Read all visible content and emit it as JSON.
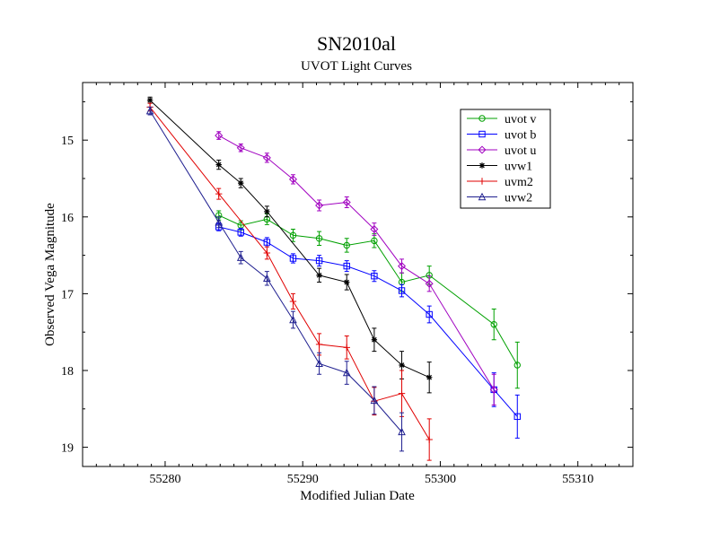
{
  "chart_data": {
    "type": "line",
    "title": "SN2010al",
    "subtitle": "UVOT Light Curves",
    "xlabel": "Modified Julian Date",
    "ylabel": "Observed Vega Magnitude",
    "xlim": [
      55274,
      55314
    ],
    "ylim": [
      19.25,
      14.25
    ],
    "y_inverted": true,
    "xticks": [
      55280,
      55290,
      55300,
      55310
    ],
    "yticks": [
      15,
      16,
      17,
      18,
      19
    ],
    "grid": false,
    "legend_position": "top-right",
    "series": [
      {
        "name": "uvot v",
        "color": "#00a000",
        "marker": "circle",
        "x": [
          55283.9,
          55285.5,
          55287.4,
          55289.3,
          55291.2,
          55293.2,
          55295.2,
          55297.2,
          55299.2,
          55303.9,
          55305.6
        ],
        "y": [
          15.98,
          16.11,
          16.03,
          16.24,
          16.28,
          16.37,
          16.31,
          16.85,
          16.76,
          17.4,
          17.93
        ],
        "err": [
          0.06,
          0.06,
          0.07,
          0.08,
          0.09,
          0.09,
          0.09,
          0.12,
          0.12,
          0.2,
          0.3
        ]
      },
      {
        "name": "uvot b",
        "color": "#0000ff",
        "marker": "square",
        "x": [
          55283.9,
          55285.5,
          55287.4,
          55289.3,
          55291.2,
          55293.2,
          55295.2,
          55297.2,
          55299.2,
          55303.9,
          55305.6
        ],
        "y": [
          16.13,
          16.2,
          16.33,
          16.54,
          16.57,
          16.64,
          16.77,
          16.96,
          17.27,
          18.25,
          18.6
        ],
        "err": [
          0.05,
          0.05,
          0.06,
          0.06,
          0.07,
          0.07,
          0.07,
          0.08,
          0.11,
          0.22,
          0.28
        ]
      },
      {
        "name": "uvot u",
        "color": "#a000c0",
        "marker": "diamond",
        "x": [
          55283.9,
          55285.5,
          55287.4,
          55289.3,
          55291.2,
          55293.2,
          55295.2,
          55297.2,
          55299.2,
          55303.9
        ],
        "y": [
          14.94,
          15.1,
          15.23,
          15.51,
          15.85,
          15.81,
          16.16,
          16.64,
          16.87,
          18.25
        ],
        "err": [
          0.05,
          0.05,
          0.06,
          0.06,
          0.07,
          0.07,
          0.08,
          0.09,
          0.1,
          0.2
        ]
      },
      {
        "name": "uvw1",
        "color": "#000000",
        "marker": "star",
        "x": [
          55278.9,
          55283.9,
          55285.5,
          55287.4,
          55291.2,
          55293.2,
          55295.2,
          55297.2,
          55299.2
        ],
        "y": [
          14.48,
          15.32,
          15.56,
          15.93,
          16.76,
          16.85,
          17.6,
          17.93,
          18.09
        ],
        "err": [
          0.04,
          0.06,
          0.06,
          0.07,
          0.09,
          0.1,
          0.15,
          0.18,
          0.2
        ]
      },
      {
        "name": "uvm2",
        "color": "#e00000",
        "marker": "plus",
        "x": [
          55278.9,
          55283.9,
          55287.4,
          55289.3,
          55291.2,
          55293.2,
          55295.2,
          55297.2,
          55299.2
        ],
        "y": [
          14.57,
          15.7,
          16.47,
          17.1,
          17.66,
          17.7,
          18.4,
          18.3,
          18.9
        ],
        "err": [
          0.05,
          0.07,
          0.08,
          0.1,
          0.14,
          0.15,
          0.18,
          0.3,
          0.27
        ]
      },
      {
        "name": "uvw2",
        "color": "#202090",
        "marker": "triangle",
        "x": [
          55278.9,
          55283.9,
          55285.5,
          55287.4,
          55289.3,
          55291.2,
          55293.2,
          55295.2,
          55297.2
        ],
        "y": [
          14.62,
          16.07,
          16.53,
          16.8,
          17.34,
          17.91,
          18.03,
          18.39,
          18.8
        ],
        "err": [
          0.05,
          0.07,
          0.08,
          0.09,
          0.11,
          0.14,
          0.15,
          0.18,
          0.25
        ]
      }
    ]
  }
}
